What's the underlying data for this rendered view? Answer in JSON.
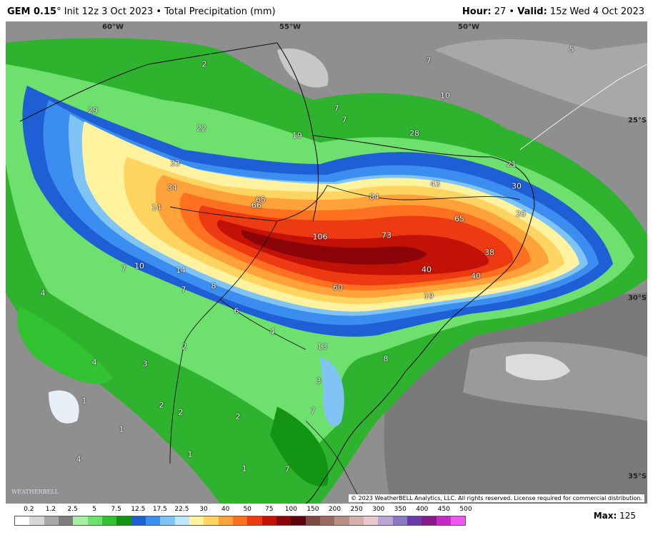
{
  "header": {
    "model": "GEM 0.15",
    "degree": "°",
    "init": "Init 12z 3 Oct 2023",
    "field": "Total Precipitation (mm)",
    "hour_label": "Hour:",
    "hour_value": "27",
    "valid_label": "Valid:",
    "valid_value": "15z Wed 4 Oct 2023"
  },
  "map": {
    "coordinates": [
      {
        "text": "60°W"
      },
      {
        "text": "55°W"
      },
      {
        "text": "50°W"
      },
      {
        "text": "25°S"
      },
      {
        "text": "30°S"
      },
      {
        "text": "35°S"
      }
    ],
    "values": [
      {
        "text": "29"
      },
      {
        "text": "33"
      },
      {
        "text": "34"
      },
      {
        "text": "14"
      },
      {
        "text": "22"
      },
      {
        "text": "65"
      },
      {
        "text": "66"
      },
      {
        "text": "106"
      },
      {
        "text": "84"
      },
      {
        "text": "73"
      },
      {
        "text": "43"
      },
      {
        "text": "65"
      },
      {
        "text": "38"
      },
      {
        "text": "40"
      },
      {
        "text": "40"
      },
      {
        "text": "60"
      },
      {
        "text": "19"
      },
      {
        "text": "13"
      },
      {
        "text": "28"
      },
      {
        "text": "19"
      },
      {
        "text": "7"
      },
      {
        "text": "7"
      },
      {
        "text": "10"
      },
      {
        "text": "7"
      },
      {
        "text": "5"
      },
      {
        "text": "2"
      },
      {
        "text": "30"
      },
      {
        "text": "21"
      },
      {
        "text": "20"
      },
      {
        "text": "14"
      },
      {
        "text": "10"
      },
      {
        "text": "7"
      },
      {
        "text": "7"
      },
      {
        "text": "8"
      },
      {
        "text": "6"
      },
      {
        "text": "4"
      },
      {
        "text": "4"
      },
      {
        "text": "3"
      },
      {
        "text": "3"
      },
      {
        "text": "2"
      },
      {
        "text": "2"
      },
      {
        "text": "2"
      },
      {
        "text": "1"
      },
      {
        "text": "1"
      },
      {
        "text": "1"
      },
      {
        "text": "4"
      },
      {
        "text": "2"
      },
      {
        "text": "7"
      },
      {
        "text": "8"
      },
      {
        "text": "4"
      },
      {
        "text": "7"
      },
      {
        "text": "1"
      }
    ],
    "copyright": "© 2023 WeatherBELL Analytics, LLC. All rights reserved. License required for commercial distribution.",
    "logo": "WEATHERBELL"
  },
  "legend": {
    "labels": [
      "0.2",
      "1.2",
      "2.5",
      "5",
      "7.5",
      "12.5",
      "17.5",
      "22.5",
      "30",
      "40",
      "50",
      "75",
      "100",
      "150",
      "200",
      "250",
      "300",
      "350",
      "400",
      "450",
      "500"
    ],
    "colors": [
      "#ffffff",
      "#d6d6d6",
      "#a9a9a9",
      "#7e7e7e",
      "#a6f0a6",
      "#6ee06e",
      "#32c232",
      "#139413",
      "#1f5fd6",
      "#3b8ef0",
      "#80c4f5",
      "#bfe6ff",
      "#fff3a0",
      "#ffd460",
      "#ffa23a",
      "#ff7020",
      "#ee3a12",
      "#c21208",
      "#8a0408",
      "#5a0410",
      "#7a4a3e",
      "#9a6a5e",
      "#ba8e86",
      "#d6b0ac",
      "#e8c8cc",
      "#b9a6d6",
      "#8a78c0",
      "#6a3aa8",
      "#8a1a8a",
      "#c22ac2",
      "#ee58ee"
    ]
  },
  "max": {
    "label": "Max:",
    "value": "125"
  }
}
